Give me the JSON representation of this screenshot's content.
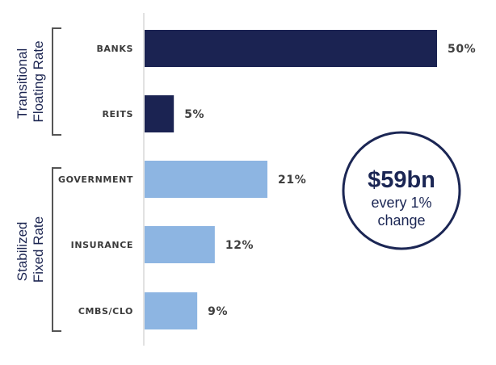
{
  "chart_data": {
    "type": "bar",
    "orientation": "horizontal",
    "categories": [
      "BANKS",
      "REITS",
      "GOVERNMENT",
      "INSURANCE",
      "CMBS/CLO"
    ],
    "values": [
      50,
      5,
      21,
      12,
      9
    ],
    "value_labels": [
      "50%",
      "5%",
      "21%",
      "12%",
      "9%"
    ],
    "xlim": [
      0,
      50
    ],
    "groups": [
      {
        "label_lines": [
          "Transitional",
          "Floating Rate"
        ],
        "categories": [
          "BANKS",
          "REITS"
        ],
        "color": "#1b2352"
      },
      {
        "label_lines": [
          "Stabilized",
          "Fixed Rate"
        ],
        "categories": [
          "GOVERNMENT",
          "INSURANCE",
          "CMBS/CLO"
        ],
        "color": "#8db5e2"
      }
    ],
    "annotation": {
      "headline": "$59bn",
      "lines": [
        "every 1%",
        "change"
      ]
    }
  },
  "colors": {
    "axis": "#d8d8d8",
    "bracket": "#555555",
    "callout_border": "#1b2654",
    "text_dark": "#1b2654"
  }
}
